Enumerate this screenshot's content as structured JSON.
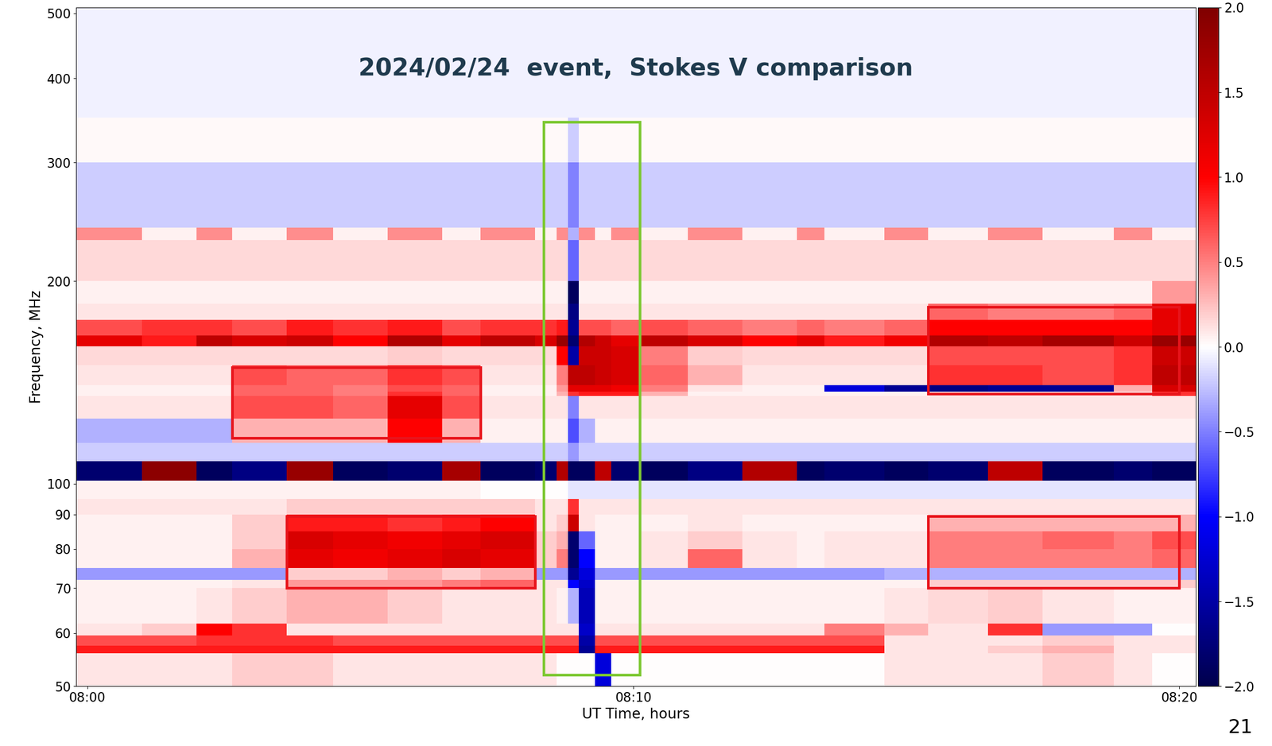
{
  "chart_data": {
    "type": "heatmap",
    "title": "2024/02/24  event,  Stokes V comparison",
    "x_label": "UT Time, hours",
    "y_label": "Frequency, MHz",
    "slide_number": "21",
    "log": "y",
    "grid": false,
    "xlim": [
      -0.2,
      20.3
    ],
    "xticks": [
      {
        "value": 0,
        "label": "08:00"
      },
      {
        "value": 10,
        "label": "08:10"
      },
      {
        "value": 20,
        "label": "08:20"
      }
    ],
    "ylim": [
      50,
      510
    ],
    "yticks": [
      50,
      60,
      70,
      80,
      90,
      100,
      200,
      300,
      400,
      500
    ],
    "colorbar": {
      "range": [
        -2,
        2
      ],
      "ticks": [
        {
          "value": -2,
          "label": "−2.0"
        },
        {
          "value": -1.5,
          "label": "−1.5"
        },
        {
          "value": -1,
          "label": "−1.0"
        },
        {
          "value": -0.5,
          "label": "−0.5"
        },
        {
          "value": 0,
          "label": "0.0"
        },
        {
          "value": 0.5,
          "label": "0.5"
        },
        {
          "value": 1,
          "label": "1.0"
        },
        {
          "value": 1.5,
          "label": "1.5"
        },
        {
          "value": 2,
          "label": "2.0"
        }
      ]
    },
    "x_edges": [
      -0.2,
      1,
      2,
      2.65,
      3.65,
      4.5,
      5.5,
      6.5,
      7.2,
      8.2,
      8.6,
      8.8,
      9.0,
      9.3,
      9.6,
      10.1,
      11,
      12,
      13,
      13.5,
      14.6,
      15.4,
      16.5,
      17.5,
      18.8,
      19.5,
      20.3
    ],
    "y_edges": [
      50,
      56,
      57.5,
      59.5,
      62,
      70,
      72,
      75,
      80,
      85,
      90,
      95,
      101,
      108,
      115,
      125,
      135,
      137,
      140,
      150,
      160,
      166,
      175,
      185,
      200,
      230,
      240,
      300,
      350,
      510
    ],
    "cells": [
      [
        0.1,
        0.1,
        0.1,
        0.2,
        0.2,
        0.1,
        0.1,
        0.1,
        0.1,
        0.1,
        0.0,
        0.0,
        0.0,
        -1.2,
        0.0,
        0.0,
        0.0,
        0.0,
        0.0,
        0.0,
        0.1,
        0.1,
        0.1,
        0.2,
        0.1,
        0.0
      ],
      [
        0.9,
        0.9,
        0.9,
        0.9,
        0.9,
        0.9,
        0.9,
        0.9,
        0.9,
        0.9,
        0.9,
        0.9,
        -1.6,
        0.9,
        0.9,
        0.9,
        0.9,
        0.9,
        0.9,
        0.9,
        0.1,
        0.1,
        0.2,
        0.3,
        0.1,
        0.1
      ],
      [
        0.7,
        0.7,
        0.8,
        0.8,
        0.8,
        0.7,
        0.7,
        0.7,
        0.7,
        0.7,
        0.7,
        0.7,
        -1.5,
        0.7,
        0.7,
        0.7,
        0.7,
        0.7,
        0.7,
        0.7,
        0.1,
        0.1,
        0.1,
        0.2,
        0.1,
        0.1
      ],
      [
        0.1,
        0.2,
        1.0,
        0.8,
        0.1,
        0.1,
        0.1,
        0.1,
        0.1,
        0.1,
        0.1,
        0.1,
        -1.3,
        0.1,
        0.1,
        0.1,
        0.1,
        0.1,
        0.1,
        0.5,
        0.3,
        0.1,
        0.8,
        -0.4,
        -0.4,
        0.0
      ],
      [
        0.05,
        0.05,
        0.1,
        0.2,
        0.3,
        0.3,
        0.2,
        0.1,
        0.1,
        0.1,
        0.05,
        -0.3,
        -1.4,
        0.05,
        0.05,
        0.05,
        0.05,
        0.05,
        0.05,
        0.05,
        0.1,
        0.15,
        0.2,
        0.1,
        0.05,
        0.05
      ],
      [
        0.05,
        0.05,
        0.05,
        0.1,
        0.4,
        0.4,
        0.4,
        0.5,
        0.6,
        0.1,
        0.1,
        -1.0,
        -1.3,
        0.05,
        0.05,
        0.05,
        0.05,
        0.05,
        0.05,
        0.05,
        0.05,
        0.2,
        0.2,
        0.2,
        0.2,
        0.2
      ],
      [
        -0.4,
        -0.4,
        -0.4,
        -0.4,
        0.2,
        0.2,
        0.3,
        0.2,
        0.3,
        -0.4,
        -0.4,
        -1.6,
        -1.2,
        -0.4,
        -0.4,
        -0.4,
        -0.4,
        -0.4,
        -0.4,
        -0.4,
        -0.3,
        -0.3,
        -0.3,
        -0.3,
        -0.3,
        -0.3
      ],
      [
        0.05,
        0.05,
        0.05,
        0.3,
        1.2,
        1.1,
        1.2,
        1.3,
        1.2,
        0.2,
        0.5,
        -1.8,
        -1.0,
        0.05,
        0.05,
        0.1,
        0.6,
        0.1,
        0.05,
        0.1,
        0.1,
        0.5,
        0.5,
        0.5,
        0.5,
        0.6
      ],
      [
        0.05,
        0.05,
        0.05,
        0.2,
        1.3,
        1.2,
        1.1,
        1.2,
        1.3,
        0.2,
        0.3,
        -1.8,
        -0.6,
        0.05,
        0.05,
        0.1,
        0.2,
        0.1,
        0.05,
        0.1,
        0.1,
        0.5,
        0.5,
        0.6,
        0.5,
        0.7
      ],
      [
        0.05,
        0.05,
        0.05,
        0.2,
        0.9,
        0.9,
        0.8,
        0.9,
        1.0,
        0.1,
        0.2,
        1.4,
        0.1,
        0.05,
        0.05,
        0.05,
        0.1,
        0.05,
        0.05,
        0.05,
        0.05,
        0.3,
        0.3,
        0.3,
        0.3,
        0.3
      ],
      [
        0.1,
        0.1,
        0.1,
        0.1,
        0.2,
        0.2,
        0.2,
        0.2,
        0.2,
        0.1,
        0.1,
        0.8,
        0.1,
        0.1,
        0.1,
        0.1,
        0.1,
        0.1,
        0.1,
        0.1,
        0.1,
        0.1,
        0.1,
        0.1,
        0.1,
        0.1
      ],
      [
        0.05,
        0.05,
        0.05,
        0.05,
        0.05,
        0.05,
        0.05,
        0.05,
        0.0,
        0.0,
        0.0,
        -0.1,
        -0.1,
        -0.1,
        -0.1,
        -0.1,
        -0.1,
        -0.1,
        -0.1,
        -0.1,
        -0.1,
        -0.1,
        -0.1,
        -0.1,
        -0.1,
        -0.1
      ],
      [
        -1.8,
        1.9,
        -1.9,
        -1.7,
        1.8,
        -1.9,
        -1.8,
        1.7,
        -1.9,
        -1.8,
        1.6,
        -1.9,
        -1.9,
        1.5,
        -1.8,
        -1.9,
        -1.7,
        1.6,
        -1.9,
        -1.8,
        -1.9,
        -1.8,
        1.5,
        -1.9,
        -1.8,
        -1.9
      ],
      [
        -0.2,
        -0.2,
        -0.2,
        -0.2,
        -0.2,
        -0.2,
        -0.2,
        -0.2,
        -0.2,
        -0.2,
        -0.2,
        -0.4,
        -0.2,
        -0.2,
        -0.2,
        -0.2,
        -0.2,
        -0.2,
        -0.2,
        -0.2,
        -0.2,
        -0.2,
        -0.2,
        -0.2,
        -0.2,
        -0.2
      ],
      [
        -0.3,
        -0.3,
        -0.3,
        0.3,
        0.3,
        0.3,
        1.0,
        0.3,
        0.05,
        0.05,
        0.05,
        -0.7,
        -0.3,
        0.05,
        0.05,
        0.05,
        0.05,
        0.05,
        0.05,
        0.05,
        0.05,
        0.05,
        0.05,
        0.05,
        0.05,
        0.05
      ],
      [
        0.1,
        0.1,
        0.1,
        0.7,
        0.7,
        0.6,
        1.2,
        0.7,
        0.1,
        0.1,
        0.1,
        -0.5,
        0.1,
        0.1,
        0.1,
        0.1,
        0.1,
        0.1,
        0.1,
        0.1,
        0.1,
        0.1,
        0.1,
        0.1,
        0.1,
        0.1
      ],
      [
        0.05,
        0.05,
        0.05,
        0.6,
        0.6,
        0.5,
        0.8,
        0.6,
        0.05,
        0.05,
        0.3,
        0.8,
        0.9,
        0.9,
        0.9,
        0.3,
        0.05,
        0.05,
        0.05,
        0.05,
        0.05,
        0.1,
        0.1,
        0.1,
        0.1,
        0.8
      ],
      [
        0.05,
        0.05,
        0.05,
        0.6,
        0.6,
        0.5,
        0.7,
        0.6,
        0.05,
        0.05,
        0.4,
        1.2,
        1.2,
        1.2,
        1.1,
        0.5,
        0.1,
        0.05,
        0.05,
        -1.2,
        -1.6,
        -1.7,
        -1.6,
        -1.6,
        0.3,
        1.3
      ],
      [
        0.1,
        0.1,
        0.1,
        0.7,
        0.6,
        0.6,
        0.8,
        0.7,
        0.1,
        0.1,
        0.5,
        1.5,
        1.5,
        1.4,
        1.3,
        0.6,
        0.3,
        0.1,
        0.1,
        0.1,
        0.1,
        0.8,
        0.8,
        0.7,
        0.8,
        1.5
      ],
      [
        0.15,
        0.15,
        0.15,
        0.15,
        0.15,
        0.15,
        0.2,
        0.15,
        0.15,
        0.15,
        1.0,
        -1.5,
        1.4,
        1.4,
        1.3,
        0.5,
        0.2,
        0.15,
        0.15,
        0.15,
        0.15,
        0.7,
        0.7,
        0.7,
        0.8,
        1.4
      ],
      [
        1.2,
        0.9,
        1.5,
        1.3,
        1.4,
        1.0,
        1.6,
        1.2,
        1.5,
        1.3,
        1.8,
        -1.8,
        1.6,
        1.4,
        1.2,
        1.5,
        1.3,
        1.0,
        1.2,
        0.9,
        1.1,
        1.6,
        1.5,
        1.7,
        1.4,
        1.8
      ],
      [
        0.7,
        0.8,
        0.8,
        0.7,
        0.9,
        0.8,
        0.9,
        0.7,
        0.8,
        0.8,
        0.9,
        -1.6,
        0.7,
        0.7,
        0.6,
        0.7,
        0.6,
        0.5,
        0.6,
        0.5,
        0.6,
        1.0,
        1.0,
        1.0,
        1.0,
        1.2
      ],
      [
        0.1,
        0.1,
        0.1,
        0.1,
        0.1,
        0.1,
        0.1,
        0.1,
        0.1,
        0.1,
        0.1,
        -1.7,
        0.1,
        0.1,
        0.1,
        0.1,
        0.1,
        0.1,
        0.1,
        0.1,
        0.1,
        0.6,
        0.5,
        0.5,
        0.6,
        1.2
      ],
      [
        0.05,
        0.05,
        0.05,
        0.05,
        0.05,
        0.05,
        0.05,
        0.05,
        0.05,
        0.05,
        0.05,
        -1.9,
        0.05,
        0.05,
        0.05,
        0.05,
        0.05,
        0.05,
        0.05,
        0.05,
        0.05,
        0.05,
        0.05,
        0.05,
        0.05,
        0.4
      ],
      [
        0.15,
        0.15,
        0.15,
        0.15,
        0.15,
        0.15,
        0.15,
        0.15,
        0.15,
        0.15,
        0.15,
        -0.6,
        0.15,
        0.15,
        0.15,
        0.15,
        0.15,
        0.15,
        0.15,
        0.15,
        0.15,
        0.15,
        0.15,
        0.15,
        0.15,
        0.15
      ],
      [
        0.45,
        0.05,
        0.45,
        0.05,
        0.45,
        0.05,
        0.45,
        0.05,
        0.45,
        0.05,
        0.45,
        -0.3,
        0.45,
        0.05,
        0.45,
        0.05,
        0.45,
        0.05,
        0.45,
        0.05,
        0.45,
        0.05,
        0.45,
        0.05,
        0.45,
        0.05
      ],
      [
        -0.2,
        -0.2,
        -0.2,
        -0.2,
        -0.2,
        -0.2,
        -0.2,
        -0.2,
        -0.2,
        -0.2,
        -0.2,
        -0.5,
        -0.2,
        -0.2,
        -0.2,
        -0.2,
        -0.2,
        -0.2,
        -0.2,
        -0.2,
        -0.2,
        -0.2,
        -0.2,
        -0.2,
        -0.2,
        -0.2
      ],
      [
        0.03,
        0.03,
        0.03,
        0.03,
        0.03,
        0.03,
        0.03,
        0.03,
        0.03,
        0.03,
        0.03,
        -0.2,
        0.03,
        0.03,
        0.03,
        0.03,
        0.03,
        0.03,
        0.03,
        0.03,
        0.03,
        0.03,
        0.03,
        0.03,
        0.03,
        0.03
      ],
      [
        -0.05,
        -0.05,
        -0.05,
        -0.05,
        -0.05,
        -0.05,
        -0.05,
        -0.05,
        -0.05,
        -0.05,
        -0.05,
        -0.05,
        -0.05,
        -0.05,
        -0.05,
        -0.05,
        -0.05,
        -0.05,
        -0.05,
        -0.05,
        -0.05,
        -0.05,
        -0.05,
        -0.05,
        -0.05,
        -0.05
      ]
    ],
    "regions": [
      {
        "color": "#e8141b",
        "time": [
          2.65,
          7.2
        ],
        "frequency": [
          117,
          149
        ]
      },
      {
        "color": "#e8141b",
        "time": [
          3.65,
          8.2
        ],
        "frequency": [
          70,
          89.5
        ]
      },
      {
        "color": "#e8141b",
        "time": [
          15.4,
          20.0
        ],
        "frequency": [
          136,
          183
        ]
      },
      {
        "color": "#e8141b",
        "time": [
          15.4,
          20.0
        ],
        "frequency": [
          70,
          89.5
        ]
      },
      {
        "color": "#7dc832",
        "time": [
          8.36,
          10.12
        ],
        "frequency": [
          52,
          345
        ]
      }
    ]
  }
}
